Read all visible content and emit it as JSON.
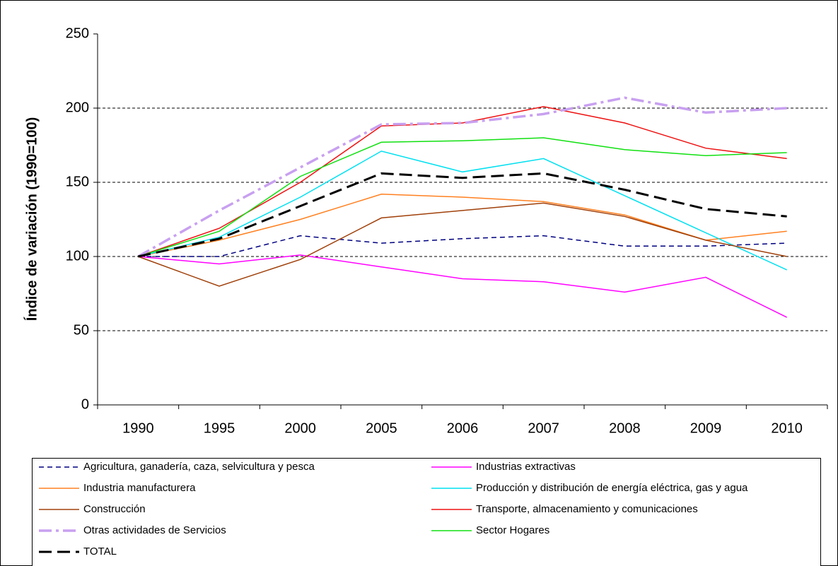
{
  "chart_data": {
    "type": "line",
    "y_label": "Índice de variación (1990=100)",
    "categories": [
      "1990",
      "1995",
      "2000",
      "2005",
      "2006",
      "2007",
      "2008",
      "2009",
      "2010"
    ],
    "ylim": [
      0,
      250
    ],
    "yticks": [
      0,
      50,
      100,
      150,
      200,
      250
    ],
    "grid": true,
    "series": [
      {
        "name": "Agricultura, ganadería, caza, selvicultura y pesca",
        "color": "#000080",
        "style": "dashed",
        "values": [
          100,
          100,
          114,
          109,
          112,
          114,
          107,
          107,
          109
        ]
      },
      {
        "name": "Industrias extractivas",
        "color": "#ff00ff",
        "style": "solid",
        "values": [
          100,
          95,
          101,
          93,
          85,
          83,
          76,
          86,
          59
        ]
      },
      {
        "name": "Industria manufacturera",
        "color": "#ff8020",
        "style": "solid",
        "values": [
          100,
          111,
          125,
          142,
          140,
          137,
          128,
          111,
          117
        ]
      },
      {
        "name": "Producción y distribución de energía eléctrica, gas y agua",
        "color": "#00e0f0",
        "style": "solid",
        "values": [
          100,
          113,
          140,
          171,
          157,
          166,
          141,
          116,
          91
        ]
      },
      {
        "name": "Construcción",
        "color": "#a0400a",
        "style": "solid",
        "values": [
          100,
          80,
          98,
          126,
          131,
          136,
          127,
          111,
          100
        ]
      },
      {
        "name": "Transporte, almacenamiento y comunicaciones",
        "color": "#ee1010",
        "style": "solid",
        "values": [
          100,
          119,
          150,
          188,
          190,
          201,
          190,
          173,
          166
        ]
      },
      {
        "name": "Otras actividades de Servicios",
        "color": "#c8a0f0",
        "style": "dash-dot",
        "values": [
          100,
          131,
          160,
          189,
          190,
          196,
          207,
          197,
          200
        ]
      },
      {
        "name": "Sector Hogares",
        "color": "#10e010",
        "style": "solid",
        "values": [
          100,
          117,
          154,
          177,
          178,
          180,
          172,
          168,
          170
        ]
      },
      {
        "name": "TOTAL",
        "color": "#000000",
        "style": "long-dashed",
        "values": [
          100,
          112,
          134,
          156,
          153,
          156,
          145,
          132,
          127
        ]
      }
    ]
  }
}
